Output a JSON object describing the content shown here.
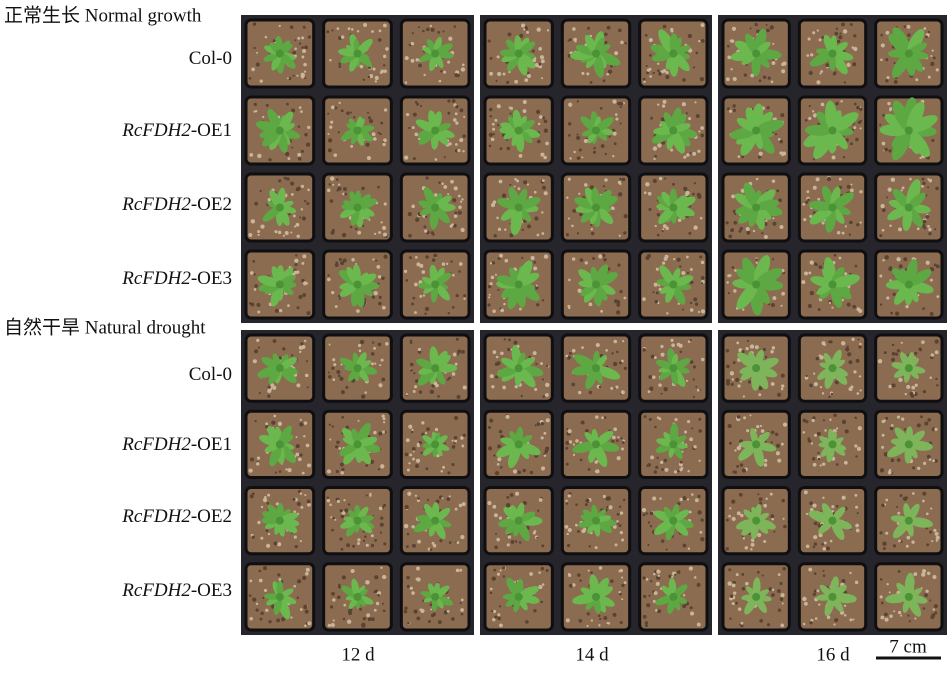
{
  "sections": [
    {
      "title": "正常生长 Normal growth",
      "rows": [
        {
          "label": "Col-0"
        },
        {
          "italic": "RcFDH2",
          "suffix": "-OE1"
        },
        {
          "italic": "RcFDH2",
          "suffix": "-OE2"
        },
        {
          "italic": "RcFDH2",
          "suffix": "-OE3"
        }
      ]
    },
    {
      "title": "自然干旱 Natural drought",
      "rows": [
        {
          "label": "Col-0"
        },
        {
          "italic": "RcFDH2",
          "suffix": "-OE1"
        },
        {
          "italic": "RcFDH2",
          "suffix": "-OE2"
        },
        {
          "italic": "RcFDH2",
          "suffix": "-OE3"
        }
      ]
    }
  ],
  "days": [
    "12 d",
    "14 d",
    "16 d"
  ],
  "scale_bar": "7 cm"
}
